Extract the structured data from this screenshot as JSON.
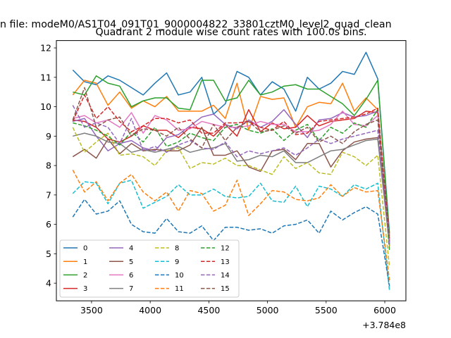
{
  "chart_data": {
    "type": "line",
    "suptitle": "n file: modeM0/AS1T04_091T01_9000004822_33801cztM0_level2_quad_clean",
    "title": "Quadrant 2 module wise count rates with 100.0s bins.",
    "xlabel": "",
    "ylabel": "",
    "x_offset_text": "+3.784e8",
    "xlim": [
      3200,
      6180
    ],
    "ylim": [
      3.4,
      12.25
    ],
    "x_ticks": [
      3500,
      4000,
      4500,
      5000,
      5500,
      6000
    ],
    "x_tick_labels": [
      "3500",
      "4000",
      "4500",
      "5000",
      "5500",
      "6000"
    ],
    "y_ticks": [
      4,
      5,
      6,
      7,
      8,
      9,
      10,
      11,
      12
    ],
    "y_tick_labels": [
      "4",
      "5",
      "6",
      "7",
      "8",
      "9",
      "10",
      "11",
      "12"
    ],
    "grid": false,
    "legend_position": "lower-left",
    "x": [
      3340,
      3440,
      3540,
      3640,
      3740,
      3840,
      3940,
      4040,
      4140,
      4240,
      4340,
      4440,
      4540,
      4640,
      4740,
      4840,
      4940,
      5040,
      5140,
      5240,
      5340,
      5440,
      5540,
      5640,
      5740,
      5840,
      5940,
      6040
    ],
    "series": [
      {
        "name": "0",
        "color": "#1f77b4",
        "dash": "solid",
        "values": [
          11.25,
          10.85,
          10.75,
          11.05,
          10.9,
          10.65,
          10.4,
          10.8,
          11.15,
          10.4,
          10.5,
          11.0,
          9.75,
          10.1,
          11.2,
          11.0,
          10.4,
          10.85,
          10.6,
          9.85,
          11.0,
          10.6,
          10.8,
          11.2,
          11.1,
          11.85,
          10.95,
          5.7
        ]
      },
      {
        "name": "1",
        "color": "#ff7f0e",
        "dash": "solid",
        "values": [
          10.4,
          10.9,
          10.8,
          10.05,
          10.5,
          9.95,
          10.2,
          10.0,
          10.35,
          9.85,
          9.85,
          9.85,
          10.05,
          9.6,
          10.8,
          9.2,
          10.35,
          10.25,
          10.3,
          9.3,
          10.0,
          10.15,
          10.1,
          10.8,
          9.85,
          10.3,
          9.9,
          5.25
        ]
      },
      {
        "name": "2",
        "color": "#2ca02c",
        "dash": "solid",
        "values": [
          10.5,
          10.4,
          11.05,
          10.8,
          10.7,
          10.0,
          10.2,
          10.3,
          10.3,
          9.95,
          9.9,
          10.9,
          10.9,
          10.2,
          10.3,
          10.9,
          10.4,
          10.5,
          10.7,
          10.75,
          10.6,
          10.6,
          10.35,
          10.1,
          9.7,
          10.25,
          10.9,
          5.6
        ]
      },
      {
        "name": "3",
        "color": "#d62728",
        "dash": "solid",
        "values": [
          9.55,
          9.5,
          9.3,
          8.9,
          8.8,
          9.0,
          9.35,
          9.2,
          9.2,
          8.95,
          9.3,
          9.25,
          9.0,
          9.4,
          9.0,
          9.9,
          9.15,
          9.45,
          9.25,
          9.3,
          9.7,
          9.35,
          9.5,
          9.55,
          9.6,
          9.85,
          9.8,
          5.4
        ]
      },
      {
        "name": "4",
        "color": "#9467bd",
        "dash": "solid",
        "values": [
          9.5,
          9.6,
          9.0,
          8.5,
          8.75,
          8.85,
          8.6,
          8.5,
          8.95,
          9.05,
          9.35,
          9.65,
          9.75,
          9.4,
          9.25,
          9.55,
          9.3,
          9.5,
          9.9,
          9.4,
          8.95,
          9.55,
          9.6,
          9.8,
          9.65,
          9.7,
          9.85,
          5.35
        ]
      },
      {
        "name": "5",
        "color": "#8c564b",
        "dash": "solid",
        "values": [
          8.3,
          8.55,
          8.25,
          8.9,
          8.4,
          8.75,
          8.5,
          8.55,
          8.5,
          8.5,
          8.7,
          9.3,
          8.35,
          8.35,
          8.5,
          7.95,
          7.8,
          8.5,
          8.55,
          8.2,
          8.75,
          8.75,
          7.95,
          8.5,
          8.8,
          8.9,
          8.95,
          5.5
        ]
      },
      {
        "name": "6",
        "color": "#e377c2",
        "dash": "solid",
        "values": [
          9.6,
          9.7,
          9.45,
          9.55,
          9.3,
          9.8,
          9.1,
          9.7,
          9.55,
          9.2,
          9.25,
          9.5,
          9.4,
          9.3,
          9.3,
          9.35,
          9.5,
          9.4,
          9.4,
          9.15,
          9.15,
          9.2,
          9.4,
          9.85,
          9.4,
          9.35,
          9.7,
          5.45
        ]
      },
      {
        "name": "7",
        "color": "#7f7f7f",
        "dash": "solid",
        "values": [
          9.0,
          9.1,
          9.0,
          8.8,
          8.75,
          8.45,
          8.55,
          8.45,
          8.55,
          8.65,
          8.45,
          8.55,
          8.6,
          8.75,
          8.15,
          8.2,
          8.35,
          8.3,
          8.5,
          8.1,
          8.1,
          8.3,
          8.5,
          8.55,
          8.7,
          8.85,
          8.9,
          5.3
        ]
      },
      {
        "name": "8",
        "color": "#bcbd22",
        "dash": "dashed",
        "values": [
          9.3,
          8.45,
          8.8,
          9.1,
          8.35,
          8.4,
          8.3,
          8.0,
          8.5,
          8.6,
          7.9,
          8.1,
          8.05,
          8.25,
          8.0,
          8.0,
          7.85,
          7.7,
          8.3,
          7.9,
          8.1,
          7.75,
          7.7,
          8.45,
          8.3,
          8.0,
          8.35,
          4.55
        ]
      },
      {
        "name": "9",
        "color": "#17becf",
        "dash": "dashed",
        "values": [
          7.05,
          7.45,
          7.4,
          6.7,
          7.4,
          7.5,
          6.55,
          6.75,
          6.95,
          7.35,
          7.0,
          7.0,
          7.2,
          6.95,
          6.9,
          6.95,
          7.4,
          6.8,
          6.75,
          7.3,
          6.6,
          7.3,
          7.2,
          6.95,
          7.35,
          7.2,
          7.4,
          3.75
        ]
      },
      {
        "name": "10",
        "color": "#1f77b4",
        "dash": "dashed",
        "values": [
          6.25,
          6.85,
          6.35,
          6.45,
          6.8,
          6.0,
          5.75,
          5.7,
          6.2,
          5.75,
          5.7,
          5.95,
          5.45,
          5.9,
          5.9,
          5.8,
          5.85,
          5.7,
          5.95,
          6.0,
          6.15,
          5.7,
          6.45,
          6.15,
          6.4,
          6.6,
          6.35,
          3.9
        ]
      },
      {
        "name": "11",
        "color": "#ff7f0e",
        "dash": "dashed",
        "values": [
          7.85,
          7.1,
          7.45,
          6.8,
          7.4,
          7.7,
          7.1,
          6.8,
          7.1,
          6.45,
          7.15,
          7.05,
          6.45,
          6.65,
          7.5,
          6.3,
          6.7,
          7.15,
          7.1,
          6.85,
          6.8,
          6.9,
          7.35,
          6.95,
          7.25,
          7.1,
          7.15,
          4.1
        ]
      },
      {
        "name": "12",
        "color": "#2ca02c",
        "dash": "dashed",
        "values": [
          9.45,
          9.35,
          9.2,
          9.0,
          8.7,
          9.15,
          8.8,
          9.3,
          8.65,
          8.8,
          9.1,
          8.95,
          8.85,
          9.3,
          9.4,
          9.2,
          9.1,
          9.25,
          8.85,
          9.2,
          9.4,
          8.85,
          9.3,
          9.1,
          9.45,
          9.3,
          9.9,
          5.1
        ]
      },
      {
        "name": "13",
        "color": "#d62728",
        "dash": "dashed",
        "values": [
          9.5,
          10.4,
          9.6,
          10.0,
          9.5,
          9.15,
          9.35,
          9.6,
          9.6,
          9.45,
          9.55,
          9.1,
          9.1,
          9.45,
          9.45,
          9.5,
          9.3,
          9.2,
          9.5,
          9.05,
          9.1,
          9.5,
          9.55,
          9.6,
          9.65,
          9.75,
          9.95,
          5.5
        ]
      },
      {
        "name": "14",
        "color": "#9467bd",
        "dash": "dashed",
        "values": [
          10.05,
          9.3,
          9.45,
          9.3,
          8.75,
          9.6,
          8.5,
          8.65,
          8.45,
          8.7,
          8.85,
          8.6,
          8.55,
          8.8,
          8.3,
          8.5,
          8.4,
          8.5,
          8.6,
          8.35,
          8.6,
          8.9,
          8.75,
          8.9,
          9.0,
          9.1,
          9.2,
          5.35
        ]
      },
      {
        "name": "15",
        "color": "#8c564b",
        "dash": "dashed",
        "values": [
          9.55,
          10.65,
          9.3,
          9.55,
          9.65,
          9.0,
          9.25,
          9.2,
          9.0,
          9.3,
          8.9,
          8.6,
          9.4,
          8.85,
          9.3,
          9.5,
          9.15,
          9.2,
          9.35,
          9.1,
          9.3,
          8.8,
          9.0,
          8.75,
          9.15,
          9.4,
          9.55,
          5.45
        ]
      }
    ]
  }
}
